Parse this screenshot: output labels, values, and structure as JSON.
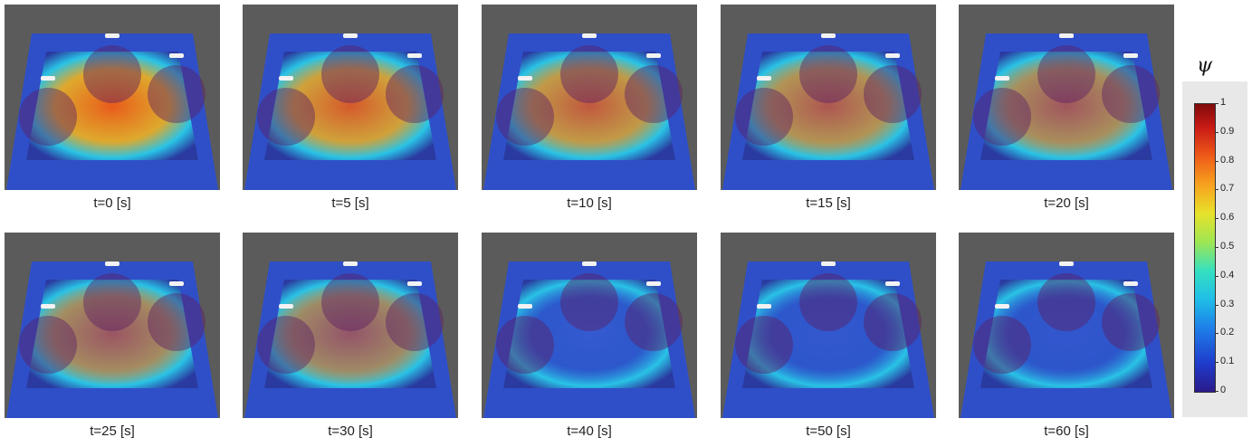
{
  "panels": [
    {
      "label": "t=0 [s]"
    },
    {
      "label": "t=5 [s]"
    },
    {
      "label": "t=10 [s]"
    },
    {
      "label": "t=15 [s]"
    },
    {
      "label": "t=20 [s]"
    },
    {
      "label": "t=25 [s]"
    },
    {
      "label": "t=30 [s]"
    },
    {
      "label": "t=40 [s]"
    },
    {
      "label": "t=50 [s]"
    },
    {
      "label": "t=60 [s]"
    }
  ],
  "colorbar": {
    "symbol": "ψ",
    "ticks": [
      "1",
      "0.9",
      "0.8",
      "0.7",
      "0.6",
      "0.5",
      "0.4",
      "0.3",
      "0.2",
      "0.1",
      "0"
    ]
  },
  "colors": {
    "background_3d": "#5b5b5b",
    "field_low": "#2a3aa0",
    "field_high": "#e85a1a"
  }
}
